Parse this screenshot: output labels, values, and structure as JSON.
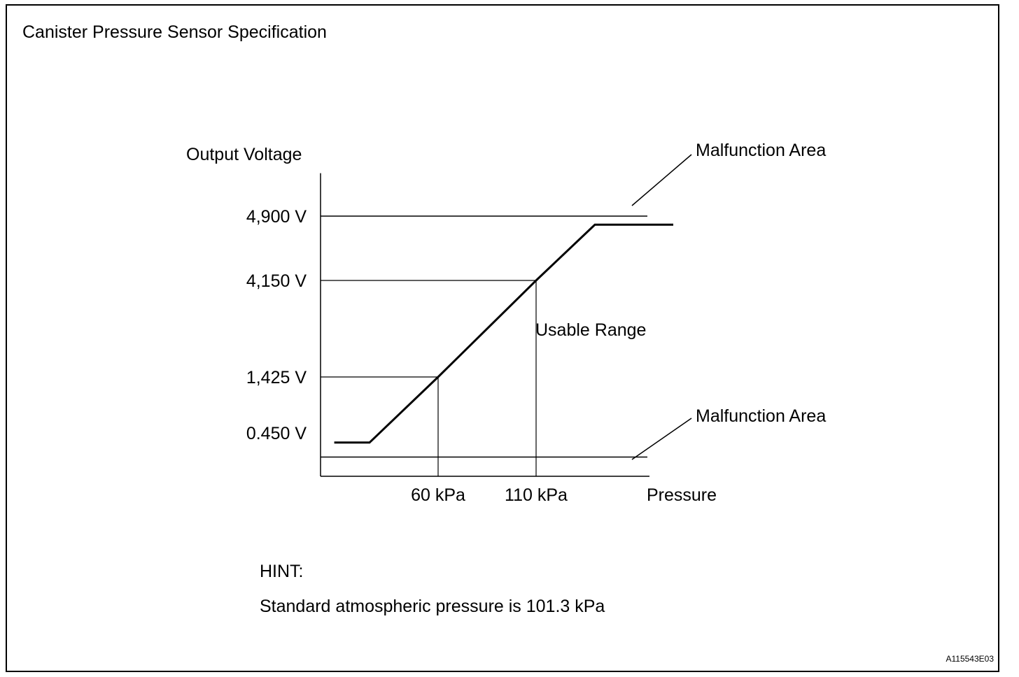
{
  "figure": {
    "title": "Canister Pressure Sensor Specification",
    "code": "A115543E03"
  },
  "hint": {
    "label": "HINT:",
    "text": "Standard atmospheric pressure is 101.3 kPa"
  },
  "chart_data": {
    "type": "line",
    "title": "Canister Pressure Sensor Specification",
    "ylabel": "Output Voltage",
    "xlabel": "Pressure",
    "y_ticks": [
      {
        "label": "4,900 V",
        "value": 4.9
      },
      {
        "label": "4,150 V",
        "value": 4.15
      },
      {
        "label": "1,425 V",
        "value": 1.425
      },
      {
        "label": "0.450 V",
        "value": 0.45
      }
    ],
    "x_ticks": [
      {
        "label": "60 kPa",
        "value": 60
      },
      {
        "label": "110 kPa",
        "value": 110
      }
    ],
    "series": [
      {
        "x": [
          7,
          25,
          60,
          110,
          140,
          180
        ],
        "y": [
          0.35,
          0.35,
          1.425,
          4.15,
          4.8,
          4.8
        ]
      }
    ],
    "malfunction_thresholds": [
      4.9,
      0.2
    ],
    "annotations": {
      "upper": "Malfunction Area",
      "lower": "Malfunction Area",
      "middle": "Usable Range"
    },
    "xlim": [
      0,
      180
    ],
    "ylim": [
      0,
      5.75
    ],
    "grid": false,
    "legend": "none"
  }
}
